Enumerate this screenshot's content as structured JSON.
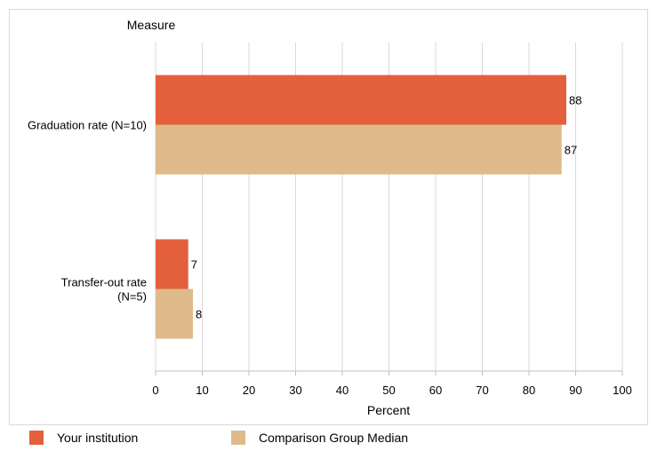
{
  "chart_data": {
    "type": "bar",
    "orientation": "horizontal",
    "title": "",
    "y_axis_title": "Measure",
    "xlabel": "Percent",
    "xlim": [
      0,
      100
    ],
    "xticks": [
      0,
      10,
      20,
      30,
      40,
      50,
      60,
      70,
      80,
      90,
      100
    ],
    "grid": true,
    "categories": [
      [
        "Graduation rate (N=10)"
      ],
      [
        "Transfer-out rate",
        "(N=5)"
      ]
    ],
    "series": [
      {
        "name": "Your institution",
        "color": "#e4603d",
        "values": [
          88,
          7
        ]
      },
      {
        "name": "Comparison Group Median",
        "color": "#dfba8a",
        "values": [
          87,
          8
        ]
      }
    ],
    "legend_position": "bottom"
  }
}
